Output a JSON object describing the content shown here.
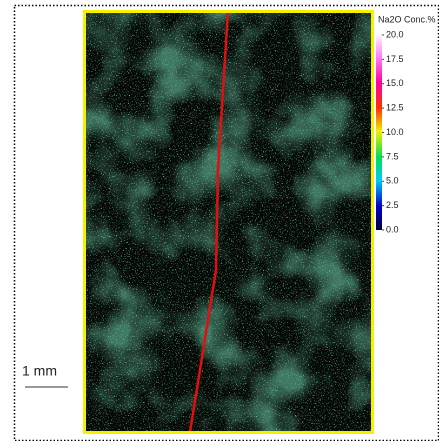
{
  "colorbar": {
    "title": "Na2O Conc.%",
    "lim": [
      0,
      20
    ],
    "ticks": [
      {
        "value": 20,
        "label": "20.0"
      },
      {
        "value": 17.5,
        "label": "17.5"
      },
      {
        "value": 15,
        "label": "15.0"
      },
      {
        "value": 12.5,
        "label": "12.5"
      },
      {
        "value": 10,
        "label": "10.0"
      },
      {
        "value": 7.5,
        "label": "7.5"
      },
      {
        "value": 5,
        "label": "5.0"
      },
      {
        "value": 2.5,
        "label": "2.5"
      },
      {
        "value": 0,
        "label": "0.0"
      }
    ]
  },
  "scale_bar": {
    "label": "1 mm"
  }
}
